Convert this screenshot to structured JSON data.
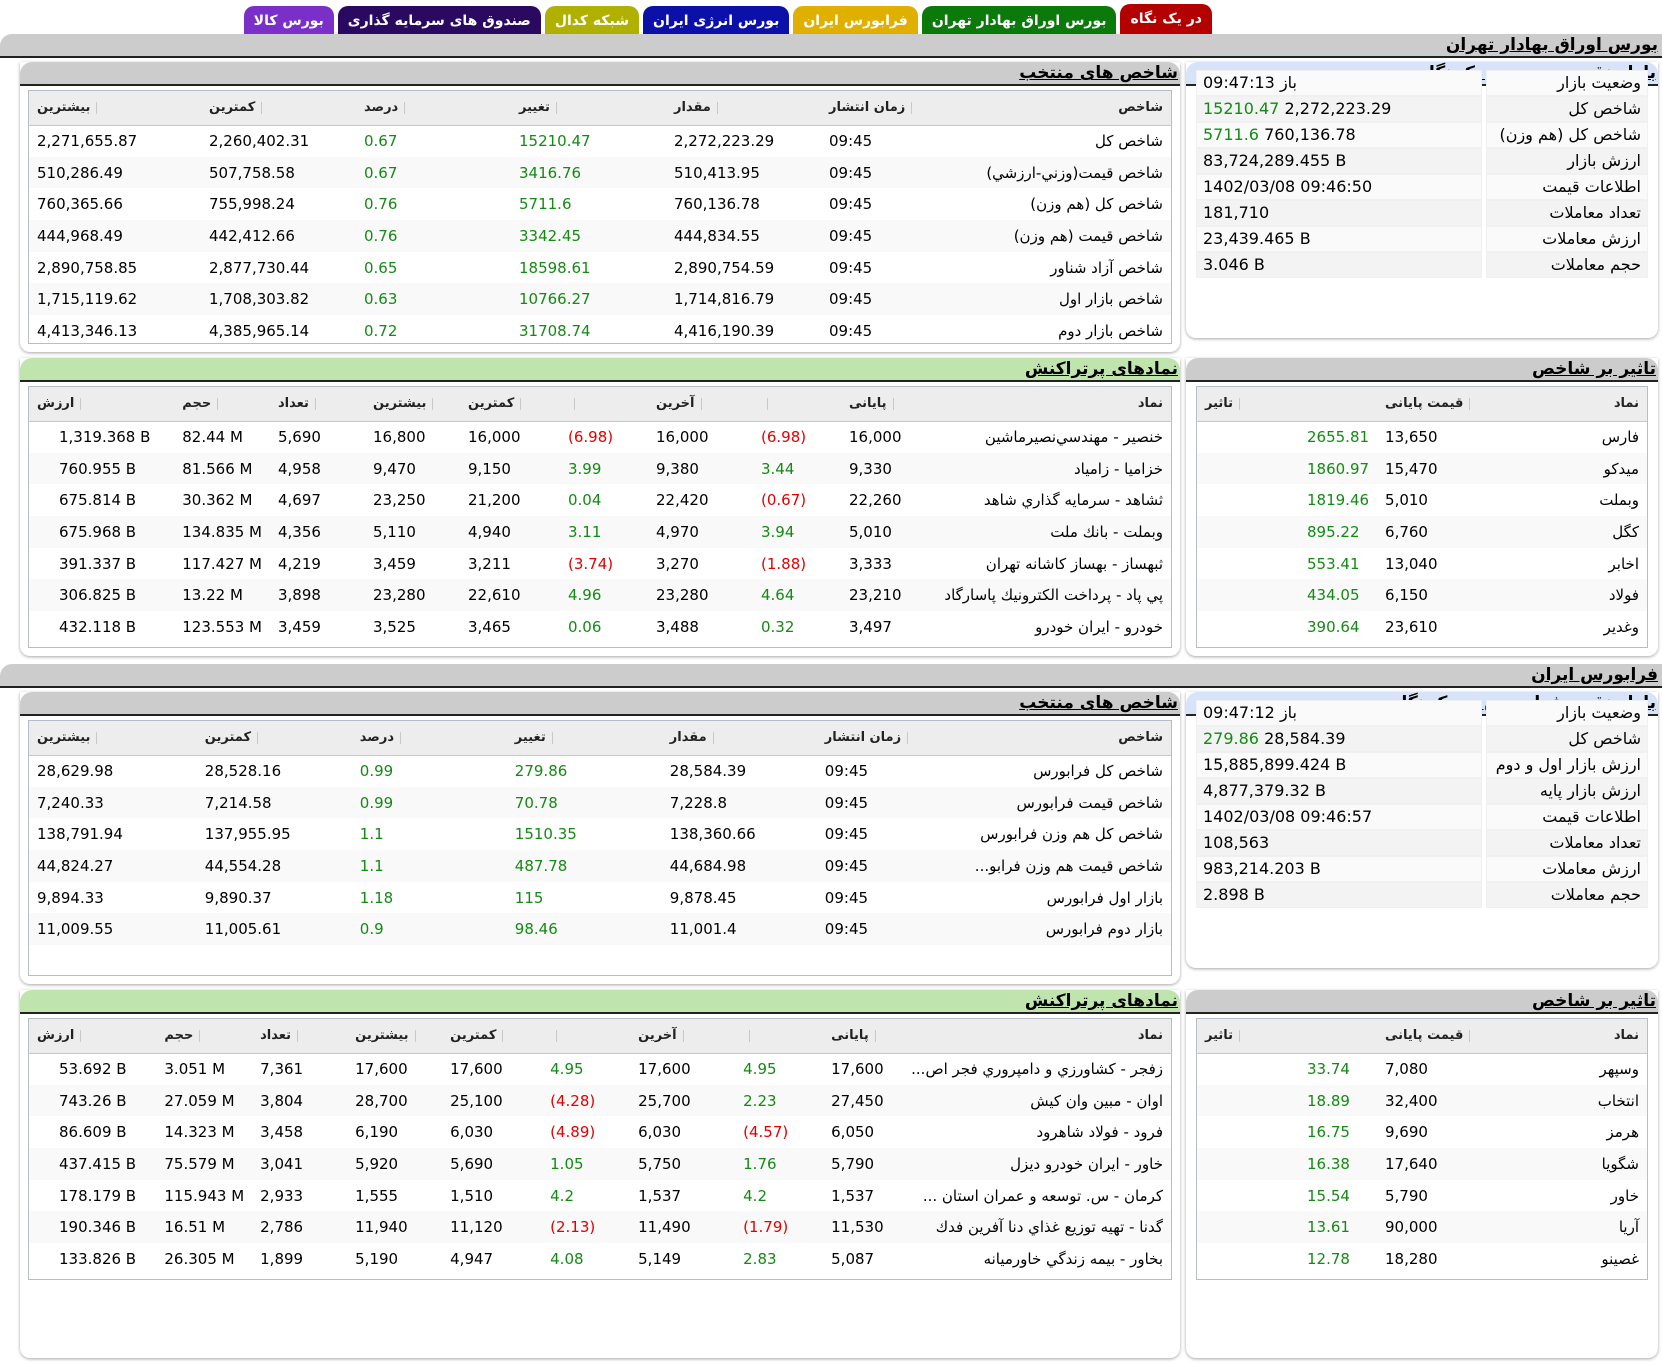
{
  "tabs": [
    {
      "label": "در یک نگاه",
      "color": "#b30000",
      "active": true
    },
    {
      "label": "بورس اوراق بهادار تهران",
      "color": "#0b7a0b"
    },
    {
      "label": "فرابورس ایران",
      "color": "#e0b000"
    },
    {
      "label": "بورس انرژی ایران",
      "color": "#0a10a8"
    },
    {
      "label": "شبکه کدال",
      "color": "#b0b000"
    },
    {
      "label": "صندوق های سرمایه گذاری",
      "color": "#2a0a60"
    },
    {
      "label": "بورس کالا",
      "color": "#7a2fc8"
    }
  ],
  "tse": {
    "title": "بورس اوراق بهادار تهران",
    "summary": {
      "title": "بازار نقدی بورس در یک نگاه",
      "rows": [
        {
          "label": "وضعیت بازار",
          "value": "باز 09:47:13",
          "change": ""
        },
        {
          "label": "شاخص کل",
          "value": "2,272,223.29",
          "change": "15210.47"
        },
        {
          "label": "شاخص کل (هم وزن)",
          "value": "760,136.78",
          "change": "5711.6"
        },
        {
          "label": "ارزش بازار",
          "value": "83,724,289.455 B",
          "change": ""
        },
        {
          "label": "اطلاعات قیمت",
          "value": "1402/03/08 09:46:50",
          "change": ""
        },
        {
          "label": "تعداد معاملات",
          "value": "181,710",
          "change": ""
        },
        {
          "label": "ارزش معاملات",
          "value": "23,439.465 B",
          "change": ""
        },
        {
          "label": "حجم معاملات",
          "value": "3.046 B",
          "change": ""
        }
      ]
    },
    "indices": {
      "title": "شاخص های منتخب",
      "columns": [
        "شاخص",
        "زمان انتشار",
        "مقدار",
        "تغییر",
        "درصد",
        "کمترین",
        "بیشترین"
      ],
      "rows": [
        {
          "name": "شاخص کل",
          "time": "09:45",
          "value": "2,272,223.29",
          "change": "15210.47",
          "percent": "0.67",
          "low": "2,260,402.31",
          "high": "2,271,655.87"
        },
        {
          "name": "شاخص قيمت(وزني-ارزشي)",
          "time": "09:45",
          "value": "510,413.95",
          "change": "3416.76",
          "percent": "0.67",
          "low": "507,758.58",
          "high": "510,286.49"
        },
        {
          "name": "شاخص کل (هم وزن)",
          "time": "09:45",
          "value": "760,136.78",
          "change": "5711.6",
          "percent": "0.76",
          "low": "755,998.24",
          "high": "760,365.66"
        },
        {
          "name": "شاخص قيمت (هم وزن)",
          "time": "09:45",
          "value": "444,834.55",
          "change": "3342.45",
          "percent": "0.76",
          "low": "442,412.66",
          "high": "444,968.49"
        },
        {
          "name": "شاخص آزاد شناور",
          "time": "09:45",
          "value": "2,890,754.59",
          "change": "18598.61",
          "percent": "0.65",
          "low": "2,877,730.44",
          "high": "2,890,758.85"
        },
        {
          "name": "شاخص بازار اول",
          "time": "09:45",
          "value": "1,714,816.79",
          "change": "10766.27",
          "percent": "0.63",
          "low": "1,708,303.82",
          "high": "1,715,119.62"
        },
        {
          "name": "شاخص بازار دوم",
          "time": "09:45",
          "value": "4,416,190.39",
          "change": "31708.74",
          "percent": "0.72",
          "low": "4,385,965.14",
          "high": "4,413,346.13"
        }
      ]
    },
    "impact": {
      "title": "تاثیر بر شاخص",
      "columns": [
        "نماد",
        "قیمت پایانی",
        "تاثیر"
      ],
      "rows": [
        {
          "symbol": "فارس",
          "close": "13,650",
          "impact": "2655.81"
        },
        {
          "symbol": "میدکو",
          "close": "15,470",
          "impact": "1860.97"
        },
        {
          "symbol": "وبملت",
          "close": "5,010",
          "impact": "1819.46"
        },
        {
          "symbol": "کگل",
          "close": "6,760",
          "impact": "895.22"
        },
        {
          "symbol": "اخابر",
          "close": "13,040",
          "impact": "553.41"
        },
        {
          "symbol": "فولاد",
          "close": "6,150",
          "impact": "434.05"
        },
        {
          "symbol": "وغدیر",
          "close": "23,610",
          "impact": "390.64"
        }
      ]
    },
    "active": {
      "title": "نمادهای پرتراکنش",
      "columns": [
        "نماد",
        "پایانی",
        "",
        "آخرین",
        "",
        "کمترین",
        "بیشترین",
        "تعداد",
        "حجم",
        "ارزش"
      ],
      "rows": [
        {
          "name": "خنصیر - مهندسي‌نصيرماشين",
          "close": "16,000",
          "close_pct": "(6.98)",
          "close_neg": true,
          "last": "16,000",
          "last_pct": "(6.98)",
          "last_neg": true,
          "low": "16,000",
          "high": "16,800",
          "count": "5,690",
          "volume": "82.44 M",
          "value": "1,319.368 B"
        },
        {
          "name": "خزامیا - زامیاد",
          "close": "9,330",
          "close_pct": "3.44",
          "close_neg": false,
          "last": "9,380",
          "last_pct": "3.99",
          "last_neg": false,
          "low": "9,150",
          "high": "9,470",
          "count": "4,958",
          "volume": "81.566 M",
          "value": "760.955 B"
        },
        {
          "name": "ثشاهد - سرمايه گذاري شاهد",
          "close": "22,260",
          "close_pct": "(0.67)",
          "close_neg": true,
          "last": "22,420",
          "last_pct": "0.04",
          "last_neg": false,
          "low": "21,200",
          "high": "23,250",
          "count": "4,697",
          "volume": "30.362 M",
          "value": "675.814 B"
        },
        {
          "name": "وبملت - بانك ملت",
          "close": "5,010",
          "close_pct": "3.94",
          "close_neg": false,
          "last": "4,970",
          "last_pct": "3.11",
          "last_neg": false,
          "low": "4,940",
          "high": "5,110",
          "count": "4,356",
          "volume": "134.835 M",
          "value": "675.968 B"
        },
        {
          "name": "ثبهساز - بهساز كاشانه تهران",
          "close": "3,333",
          "close_pct": "(1.88)",
          "close_neg": true,
          "last": "3,270",
          "last_pct": "(3.74)",
          "last_neg": true,
          "low": "3,211",
          "high": "3,459",
          "count": "4,219",
          "volume": "117.427 M",
          "value": "391.337 B"
        },
        {
          "name": "پي پاد - پرداخت الكترونيك پاسارگاد",
          "close": "23,210",
          "close_pct": "4.64",
          "close_neg": false,
          "last": "23,280",
          "last_pct": "4.96",
          "last_neg": false,
          "low": "22,610",
          "high": "23,280",
          "count": "3,898",
          "volume": "13.22 M",
          "value": "306.825 B"
        },
        {
          "name": "خودرو - ايران خودرو",
          "close": "3,497",
          "close_pct": "0.32",
          "close_neg": false,
          "last": "3,488",
          "last_pct": "0.06",
          "last_neg": false,
          "low": "3,465",
          "high": "3,525",
          "count": "3,459",
          "volume": "123.553 M",
          "value": "432.118 B"
        }
      ]
    }
  },
  "ifb": {
    "title": "فرابورس ایران",
    "summary": {
      "title": "بازار نقدی فرابورس در یک نگاه",
      "rows": [
        {
          "label": "وضعیت بازار",
          "value": "باز 09:47:12",
          "change": ""
        },
        {
          "label": "شاخص کل",
          "value": "28,584.39",
          "change": "279.86"
        },
        {
          "label": "ارزش بازار اول و دوم",
          "value": "15,885,899.424 B",
          "change": ""
        },
        {
          "label": "ارزش بازار پایه",
          "value": "4,877,379.32 B",
          "change": ""
        },
        {
          "label": "اطلاعات قیمت",
          "value": "1402/03/08 09:46:57",
          "change": ""
        },
        {
          "label": "تعداد معاملات",
          "value": "108,563",
          "change": ""
        },
        {
          "label": "ارزش معاملات",
          "value": "983,214.203 B",
          "change": ""
        },
        {
          "label": "حجم معاملات",
          "value": "2.898 B",
          "change": ""
        }
      ]
    },
    "indices": {
      "title": "شاخص های منتخب",
      "columns": [
        "شاخص",
        "زمان انتشار",
        "مقدار",
        "تغییر",
        "درصد",
        "کمترین",
        "بیشترین"
      ],
      "rows": [
        {
          "name": "شاخص کل فرابورس",
          "time": "09:45",
          "value": "28,584.39",
          "change": "279.86",
          "percent": "0.99",
          "low": "28,528.16",
          "high": "28,629.98"
        },
        {
          "name": "شاخص قیمت فرابورس",
          "time": "09:45",
          "value": "7,228.8",
          "change": "70.78",
          "percent": "0.99",
          "low": "7,214.58",
          "high": "7,240.33"
        },
        {
          "name": "شاخص کل هم وزن فرابورس",
          "time": "09:45",
          "value": "138,360.66",
          "change": "1510.35",
          "percent": "1.1",
          "low": "137,955.95",
          "high": "138,791.94"
        },
        {
          "name": "شاخص قیمت هم وزن فرابو...",
          "time": "09:45",
          "value": "44,684.98",
          "change": "487.78",
          "percent": "1.1",
          "low": "44,554.28",
          "high": "44,824.27"
        },
        {
          "name": "بازار اول فرابورس",
          "time": "09:45",
          "value": "9,878.45",
          "change": "115",
          "percent": "1.18",
          "low": "9,890.37",
          "high": "9,894.33"
        },
        {
          "name": "بازار دوم فرابورس",
          "time": "09:45",
          "value": "11,001.4",
          "change": "98.46",
          "percent": "0.9",
          "low": "11,005.61",
          "high": "11,009.55"
        }
      ]
    },
    "impact": {
      "title": "تاثیر بر شاخص",
      "columns": [
        "نماد",
        "قیمت پایانی",
        "تاثیر"
      ],
      "rows": [
        {
          "symbol": "وسپهر",
          "close": "7,080",
          "impact": "33.74"
        },
        {
          "symbol": "انتخاب",
          "close": "32,400",
          "impact": "18.89"
        },
        {
          "symbol": "هرمز",
          "close": "9,690",
          "impact": "16.75"
        },
        {
          "symbol": "شگویا",
          "close": "17,640",
          "impact": "16.38"
        },
        {
          "symbol": "خاور",
          "close": "5,790",
          "impact": "15.54"
        },
        {
          "symbol": "آریا",
          "close": "90,000",
          "impact": "13.61"
        },
        {
          "symbol": "غصینو",
          "close": "18,280",
          "impact": "12.78"
        }
      ]
    },
    "active": {
      "title": "نمادهای پرتراکنش",
      "columns": [
        "نماد",
        "پایانی",
        "",
        "آخرین",
        "",
        "کمترین",
        "بیشترین",
        "تعداد",
        "حجم",
        "ارزش"
      ],
      "rows": [
        {
          "name": "زفجر - كشاورزي و دامپروري فجر اص...",
          "close": "17,600",
          "close_pct": "4.95",
          "close_neg": false,
          "last": "17,600",
          "last_pct": "4.95",
          "last_neg": false,
          "low": "17,600",
          "high": "17,600",
          "count": "7,361",
          "volume": "3.051 M",
          "value": "53.692 B"
        },
        {
          "name": "اوان - مبین وان کیش",
          "close": "27,450",
          "close_pct": "2.23",
          "close_neg": false,
          "last": "25,700",
          "last_pct": "(4.28)",
          "last_neg": true,
          "low": "25,100",
          "high": "28,700",
          "count": "3,804",
          "volume": "27.059 M",
          "value": "743.26 B"
        },
        {
          "name": "فرود - فولاد شاهرود",
          "close": "6,050",
          "close_pct": "(4.57)",
          "close_neg": true,
          "last": "6,030",
          "last_pct": "(4.89)",
          "last_neg": true,
          "low": "6,030",
          "high": "6,190",
          "count": "3,458",
          "volume": "14.323 M",
          "value": "86.609 B"
        },
        {
          "name": "خاور - ایران خودرو دیزل",
          "close": "5,790",
          "close_pct": "1.76",
          "close_neg": false,
          "last": "5,750",
          "last_pct": "1.05",
          "last_neg": false,
          "low": "5,690",
          "high": "5,920",
          "count": "3,041",
          "volume": "75.579 M",
          "value": "437.415 B"
        },
        {
          "name": "كرمان - س. توسعه و عمران استان ...",
          "close": "1,537",
          "close_pct": "4.2",
          "close_neg": false,
          "last": "1,537",
          "last_pct": "4.2",
          "last_neg": false,
          "low": "1,510",
          "high": "1,555",
          "count": "2,933",
          "volume": "115.943 M",
          "value": "178.179 B"
        },
        {
          "name": "گدنا - تهيه توزيع غذاي دنا آفرين فدك",
          "close": "11,530",
          "close_pct": "(1.79)",
          "close_neg": true,
          "last": "11,490",
          "last_pct": "(2.13)",
          "last_neg": true,
          "low": "11,120",
          "high": "11,940",
          "count": "2,786",
          "volume": "16.51 M",
          "value": "190.346 B"
        },
        {
          "name": "بخاور - بیمه زندگي خاورمیانه",
          "close": "5,087",
          "close_pct": "2.83",
          "close_neg": false,
          "last": "5,149",
          "last_pct": "4.08",
          "last_neg": false,
          "low": "4,947",
          "high": "5,190",
          "count": "1,899",
          "volume": "26.305 M",
          "value": "133.826 B"
        }
      ]
    }
  },
  "colors": {
    "positive": "#138a13",
    "negative": "#e00000",
    "summary_header": "#d6e3f8",
    "active_header": "#bfe4ae",
    "gray_header": "#cccccc"
  }
}
